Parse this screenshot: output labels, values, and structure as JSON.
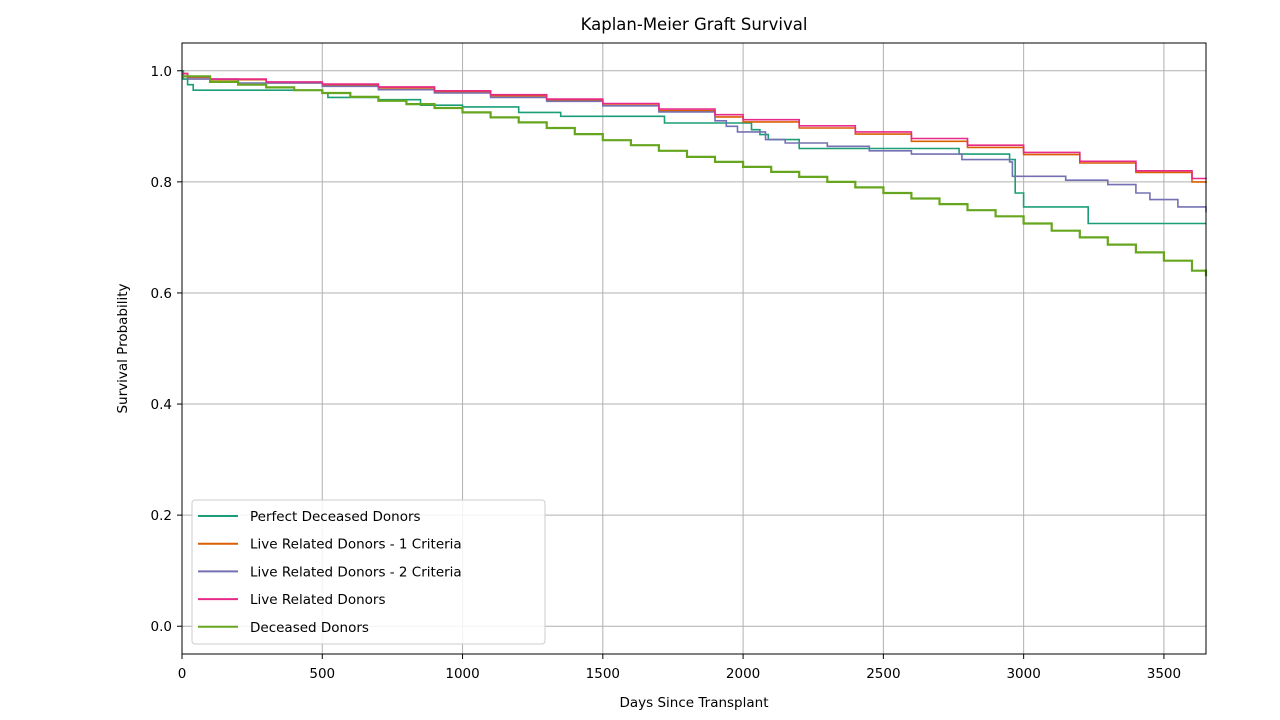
{
  "chart_data": {
    "type": "line",
    "step": true,
    "title": "Kaplan-Meier Graft Survival",
    "xlabel": "Days Since Transplant",
    "ylabel": "Survival Probability",
    "xlim": [
      0,
      3650
    ],
    "ylim": [
      -0.05,
      1.05
    ],
    "xticks": [
      0,
      500,
      1000,
      1500,
      2000,
      2500,
      3000,
      3500
    ],
    "yticks": [
      0.0,
      0.2,
      0.4,
      0.6,
      0.8,
      1.0
    ],
    "xtick_labels": [
      "0",
      "500",
      "1000",
      "1500",
      "2000",
      "2500",
      "3000",
      "3500"
    ],
    "ytick_labels": [
      "0.0",
      "0.2",
      "0.4",
      "0.6",
      "0.8",
      "1.0"
    ],
    "grid": true,
    "legend_position": "lower-left",
    "series": [
      {
        "name": "Perfect Deceased Donors",
        "color": "#1b9e77",
        "x": [
          0,
          5,
          20,
          40,
          500,
          520,
          700,
          850,
          1000,
          1150,
          1200,
          1350,
          1500,
          1720,
          1900,
          2030,
          2060,
          2090,
          2200,
          2770,
          2950,
          2970,
          3000,
          3230,
          3650
        ],
        "y": [
          1.0,
          0.985,
          0.975,
          0.965,
          0.96,
          0.952,
          0.948,
          0.938,
          0.935,
          0.935,
          0.925,
          0.918,
          0.918,
          0.906,
          0.906,
          0.894,
          0.885,
          0.876,
          0.86,
          0.85,
          0.84,
          0.78,
          0.755,
          0.725,
          0.725
        ]
      },
      {
        "name": "Live Related Donors - 1 Criteria",
        "color": "#d95f02",
        "x": [
          0,
          20,
          100,
          300,
          500,
          700,
          900,
          1100,
          1300,
          1500,
          1700,
          1900,
          2000,
          2200,
          2400,
          2600,
          2800,
          3000,
          3200,
          3400,
          3600,
          3650
        ],
        "y": [
          0.995,
          0.988,
          0.984,
          0.978,
          0.974,
          0.969,
          0.962,
          0.955,
          0.947,
          0.938,
          0.928,
          0.917,
          0.908,
          0.897,
          0.886,
          0.873,
          0.862,
          0.849,
          0.834,
          0.817,
          0.8,
          0.798
        ]
      },
      {
        "name": "Live Related Donors - 2 Criteria",
        "color": "#7570b3",
        "x": [
          0,
          20,
          200,
          500,
          700,
          900,
          1100,
          1300,
          1500,
          1700,
          1900,
          1940,
          1980,
          2080,
          2150,
          2300,
          2450,
          2600,
          2780,
          2950,
          2960,
          3150,
          3300,
          3400,
          3450,
          3550,
          3650
        ],
        "y": [
          0.99,
          0.985,
          0.978,
          0.972,
          0.966,
          0.96,
          0.952,
          0.945,
          0.937,
          0.926,
          0.91,
          0.9,
          0.89,
          0.876,
          0.87,
          0.864,
          0.856,
          0.85,
          0.84,
          0.836,
          0.81,
          0.803,
          0.795,
          0.78,
          0.768,
          0.755,
          0.745
        ]
      },
      {
        "name": "Live Related Donors",
        "color": "#e7298a",
        "x": [
          0,
          20,
          100,
          300,
          500,
          700,
          900,
          1100,
          1300,
          1500,
          1700,
          1900,
          2000,
          2200,
          2400,
          2600,
          2800,
          3000,
          3200,
          3400,
          3600,
          3650
        ],
        "y": [
          0.995,
          0.989,
          0.985,
          0.98,
          0.976,
          0.971,
          0.964,
          0.957,
          0.949,
          0.941,
          0.931,
          0.921,
          0.912,
          0.901,
          0.89,
          0.878,
          0.866,
          0.853,
          0.837,
          0.82,
          0.806,
          0.805
        ]
      },
      {
        "name": "Deceased Donors",
        "color": "#66a61e",
        "x": [
          0,
          100,
          200,
          300,
          400,
          500,
          600,
          700,
          800,
          900,
          1000,
          1100,
          1200,
          1300,
          1400,
          1500,
          1600,
          1700,
          1800,
          1900,
          2000,
          2100,
          2200,
          2300,
          2400,
          2500,
          2600,
          2700,
          2800,
          2900,
          3000,
          3100,
          3200,
          3300,
          3400,
          3500,
          3600,
          3650
        ],
        "y": [
          0.99,
          0.98,
          0.975,
          0.97,
          0.965,
          0.96,
          0.953,
          0.946,
          0.94,
          0.933,
          0.925,
          0.916,
          0.907,
          0.897,
          0.886,
          0.875,
          0.866,
          0.856,
          0.845,
          0.836,
          0.827,
          0.818,
          0.809,
          0.8,
          0.79,
          0.78,
          0.77,
          0.76,
          0.749,
          0.738,
          0.725,
          0.712,
          0.7,
          0.687,
          0.673,
          0.658,
          0.64,
          0.63
        ]
      }
    ]
  }
}
